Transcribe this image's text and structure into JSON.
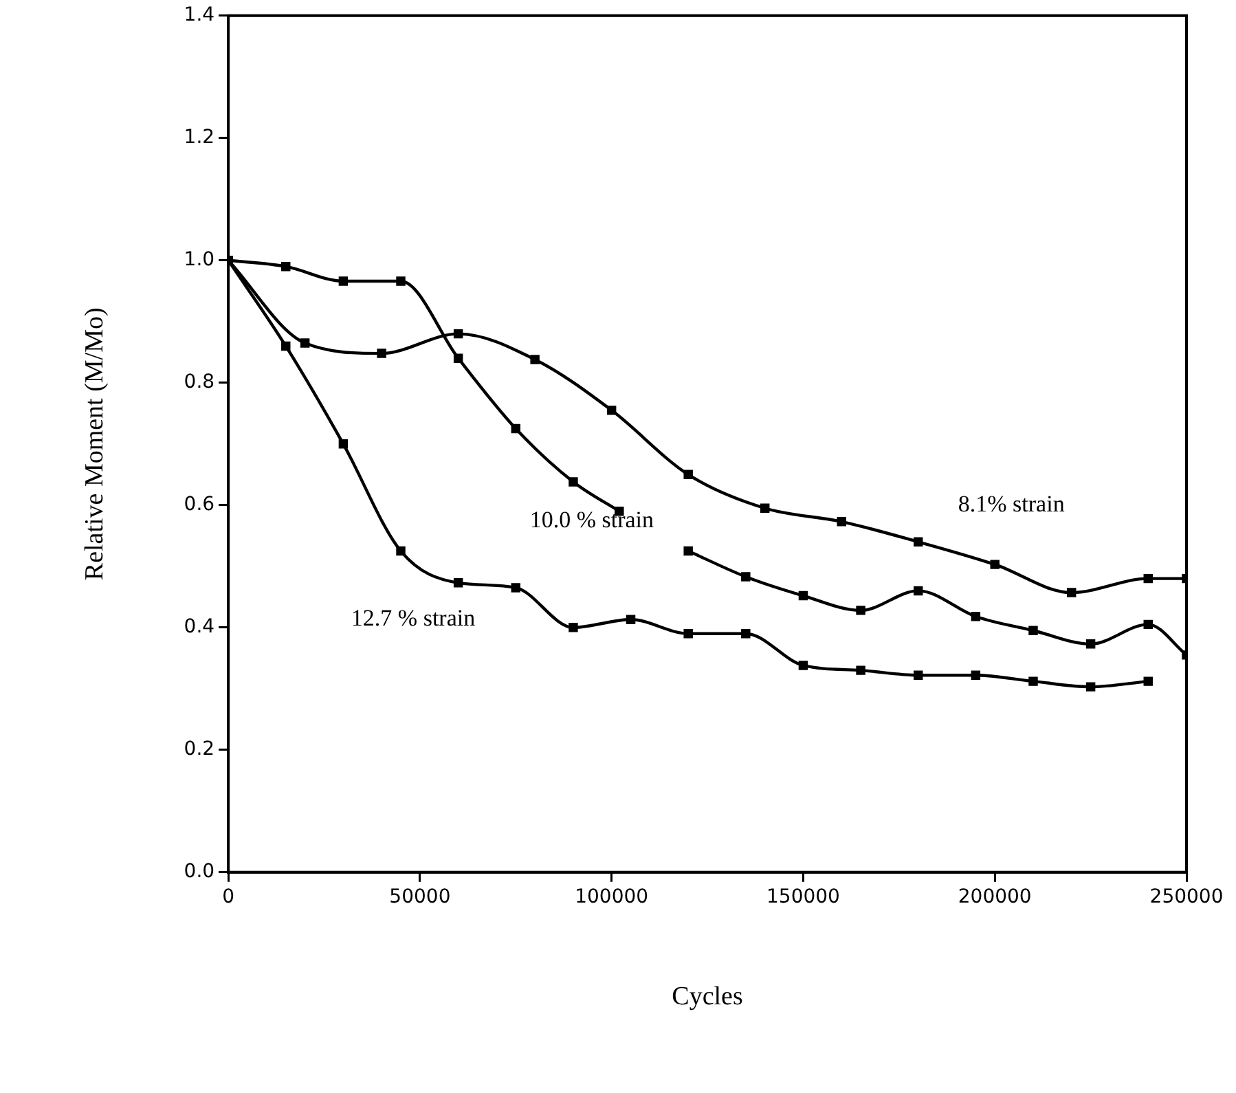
{
  "chart_data": {
    "type": "line",
    "xlabel": "Cycles",
    "ylabel": "Relative Moment (M/Mo)",
    "xlim": [
      0,
      250000
    ],
    "xticks": [
      0,
      50000,
      100000,
      150000,
      200000,
      250000
    ],
    "ylim": [
      0,
      1.4
    ],
    "yticks": [
      {
        "value": 0,
        "label": "0.0"
      },
      0.2,
      0.4,
      0.6,
      0.8,
      {
        "value": 1,
        "label": "1.0"
      },
      1.2,
      1.4
    ],
    "grid": false,
    "legend": false,
    "marker": "square",
    "line_style": "solid",
    "series": [
      {
        "name": "8.1% strain",
        "color": "#000000",
        "x": [
          0,
          20000,
          40000,
          60000,
          80000,
          100000,
          120000,
          140000,
          160000,
          180000,
          200000,
          220000,
          240000,
          250000
        ],
        "values": [
          1.0,
          0.865,
          0.848,
          0.88,
          0.838,
          0.755,
          0.65,
          0.595,
          0.573,
          0.54,
          0.503,
          0.457,
          0.48,
          0.48
        ]
      },
      {
        "name": "10.0 % strain",
        "color": "#000000",
        "x": [
          0,
          15000,
          30000,
          45000,
          60000,
          75000,
          90000,
          102000,
          110000,
          120000,
          135000,
          150000,
          165000,
          180000,
          195000,
          210000,
          225000,
          240000,
          250000
        ],
        "values": [
          1.0,
          0.99,
          0.966,
          0.966,
          0.84,
          0.725,
          0.638,
          0.59,
          null,
          0.525,
          0.483,
          0.452,
          0.428,
          0.46,
          0.418,
          0.395,
          0.373,
          0.405,
          0.355
        ]
      },
      {
        "name": "12.7 % strain",
        "color": "#000000",
        "x": [
          0,
          15000,
          30000,
          45000,
          60000,
          75000,
          90000,
          105000,
          120000,
          135000,
          150000,
          165000,
          180000,
          195000,
          210000,
          225000,
          240000
        ],
        "values": [
          1.0,
          0.86,
          0.7,
          0.525,
          0.473,
          0.465,
          0.4,
          0.413,
          0.39,
          0.39,
          0.338,
          0.33,
          0.322,
          0.322,
          0.312,
          0.303,
          0.312
        ]
      }
    ]
  }
}
